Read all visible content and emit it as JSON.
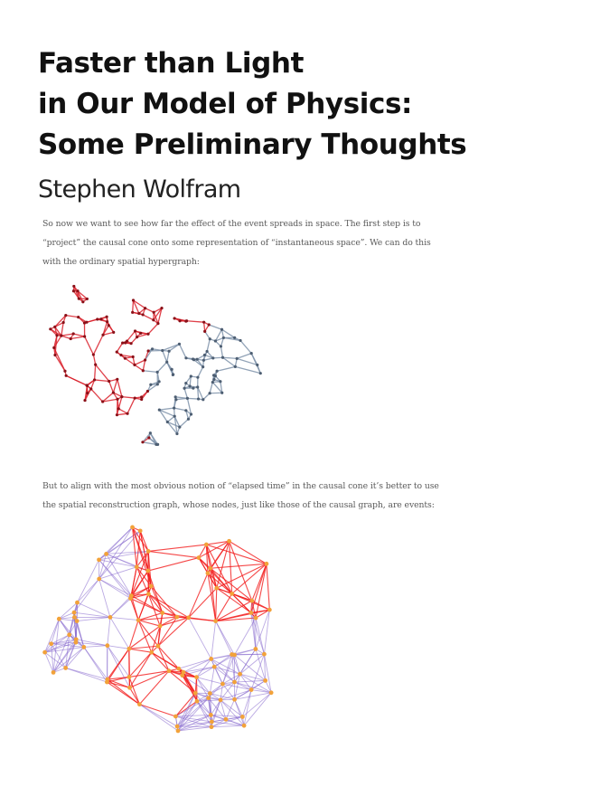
{
  "header": {
    "title_lines": [
      "Faster than Light",
      "in Our Model of Physics:",
      "Some Preliminary Thoughts"
    ],
    "author": "Stephen Wolfram"
  },
  "body": {
    "paragraph1_lines": [
      "So now we want to see how far the effect of the event spreads in space. The first step is to",
      "“project” the causal cone onto some representation of “instantaneous space”. We can do this",
      "with the ordinary spatial hypergraph:"
    ],
    "paragraph2_lines": [
      "But to align with the most obvious notion of “elapsed time” in the causal cone it’s better to use",
      "the spatial reconstruction graph, whose nodes, just like those of the causal graph, are events:"
    ]
  },
  "colors": {
    "cone_red": "#d9202a",
    "space_gray": "#7f93aa",
    "reconstruction_purple": "#8464cc",
    "bright_red": "#f21a1a",
    "node_orange": "#f2a23a"
  },
  "figures": [
    {
      "name": "spatial-hypergraph",
      "palette": [
        "cone_red",
        "space_gray"
      ]
    },
    {
      "name": "spatial-reconstruction-graph",
      "palette": [
        "reconstruction_purple",
        "bright_red",
        "node_orange"
      ]
    }
  ]
}
